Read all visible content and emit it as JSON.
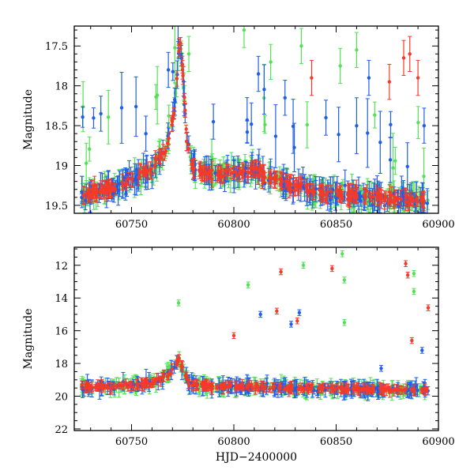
{
  "chart_data": [
    {
      "type": "scatter",
      "panel": "top",
      "title": "",
      "xlabel": "",
      "ylabel": "Magnitude",
      "xlim": [
        60722,
        60900
      ],
      "ylim": [
        19.6,
        17.25
      ],
      "y_inverted": true,
      "grid": false,
      "legend": "none",
      "x_ticks": [
        60750,
        60800,
        60850,
        60900
      ],
      "x_tick_labels": [
        "60750",
        "60800",
        "60850",
        "60900"
      ],
      "y_ticks": [
        17.5,
        18,
        18.5,
        19,
        19.5
      ],
      "y_tick_labels": [
        "17.5",
        "18",
        "18.5",
        "19",
        "19.5"
      ],
      "error_bars": true,
      "series": [
        {
          "color": "#55e055",
          "marker": "circle"
        },
        {
          "color": "#1f5ee8",
          "marker": "circle"
        },
        {
          "color": "#f53a2a",
          "marker": "circle"
        }
      ],
      "baseline": {
        "description": "quiescent level ~19.3 mag rising to outburst peak",
        "points": [
          [
            60725,
            19.38
          ],
          [
            60740,
            19.28
          ],
          [
            60750,
            19.18
          ],
          [
            60760,
            19.05
          ],
          [
            60767,
            18.78
          ],
          [
            60770,
            18.45
          ],
          [
            60772,
            18.05
          ],
          [
            60773,
            17.55
          ],
          [
            60774,
            17.45
          ],
          [
            60775,
            17.8
          ],
          [
            60777,
            18.7
          ],
          [
            60780,
            19.02
          ],
          [
            60790,
            19.12
          ],
          [
            60800,
            19.1
          ],
          [
            60810,
            19.05
          ],
          [
            60820,
            19.18
          ],
          [
            60840,
            19.32
          ],
          [
            60860,
            19.38
          ],
          [
            60880,
            19.42
          ],
          [
            60895,
            19.45
          ]
        ]
      },
      "outliers": [
        {
          "x": 60735,
          "y": 18.35,
          "color": "#1f5ee8"
        },
        {
          "x": 60757,
          "y": 18.6,
          "color": "#1f5ee8"
        },
        {
          "x": 60768,
          "y": 17.8,
          "color": "#1f5ee8"
        },
        {
          "x": 60778,
          "y": 17.6,
          "color": "#55e055"
        },
        {
          "x": 60790,
          "y": 18.45,
          "color": "#1f5ee8"
        },
        {
          "x": 60805,
          "y": 17.3,
          "color": "#55e055"
        },
        {
          "x": 60812,
          "y": 17.85,
          "color": "#1f5ee8"
        },
        {
          "x": 60818,
          "y": 17.7,
          "color": "#55e055"
        },
        {
          "x": 60825,
          "y": 18.15,
          "color": "#1f5ee8"
        },
        {
          "x": 60833,
          "y": 17.5,
          "color": "#55e055"
        },
        {
          "x": 60838,
          "y": 17.9,
          "color": "#f53a2a"
        },
        {
          "x": 60845,
          "y": 18.4,
          "color": "#1f5ee8"
        },
        {
          "x": 60852,
          "y": 17.75,
          "color": "#55e055"
        },
        {
          "x": 60860,
          "y": 17.55,
          "color": "#55e055"
        },
        {
          "x": 60866,
          "y": 17.9,
          "color": "#1f5ee8"
        },
        {
          "x": 60876,
          "y": 17.95,
          "color": "#f53a2a"
        },
        {
          "x": 60883,
          "y": 17.65,
          "color": "#f53a2a"
        },
        {
          "x": 60886,
          "y": 17.6,
          "color": "#f53a2a"
        },
        {
          "x": 60890,
          "y": 17.9,
          "color": "#f53a2a"
        },
        {
          "x": 60893,
          "y": 18.5,
          "color": "#1f5ee8"
        }
      ]
    },
    {
      "type": "scatter",
      "panel": "bottom",
      "title": "",
      "xlabel": "HJD−2400000",
      "ylabel": "Magnitude",
      "xlim": [
        60722,
        60900
      ],
      "ylim": [
        22.1,
        10.9
      ],
      "y_inverted": true,
      "grid": false,
      "legend": "none",
      "x_ticks": [
        60750,
        60800,
        60850,
        60900
      ],
      "x_tick_labels": [
        "60750",
        "60800",
        "60850",
        "60900"
      ],
      "y_ticks": [
        12,
        14,
        16,
        18,
        20,
        22
      ],
      "y_tick_labels": [
        "12",
        "14",
        "16",
        "18",
        "20",
        "22"
      ],
      "error_bars": true,
      "series": [
        {
          "color": "#55e055",
          "marker": "circle"
        },
        {
          "color": "#1f5ee8",
          "marker": "circle"
        },
        {
          "color": "#f53a2a",
          "marker": "circle"
        }
      ],
      "baseline": {
        "description": "quiescent level ~19.4 mag with outburst peak near 17.6",
        "points": [
          [
            60725,
            19.45
          ],
          [
            60740,
            19.4
          ],
          [
            60755,
            19.3
          ],
          [
            60765,
            19.0
          ],
          [
            60770,
            18.4
          ],
          [
            60773,
            17.7
          ],
          [
            60775,
            18.3
          ],
          [
            60778,
            19.2
          ],
          [
            60790,
            19.45
          ],
          [
            60810,
            19.4
          ],
          [
            60830,
            19.5
          ],
          [
            60850,
            19.55
          ],
          [
            60870,
            19.6
          ],
          [
            60885,
            19.6
          ],
          [
            60895,
            19.55
          ]
        ]
      },
      "outliers": [
        {
          "x": 60773,
          "y": 14.3,
          "color": "#55e055"
        },
        {
          "x": 60807,
          "y": 13.2,
          "color": "#55e055"
        },
        {
          "x": 60800,
          "y": 16.3,
          "color": "#f53a2a"
        },
        {
          "x": 60813,
          "y": 15.0,
          "color": "#1f5ee8"
        },
        {
          "x": 60821,
          "y": 14.8,
          "color": "#f53a2a"
        },
        {
          "x": 60823,
          "y": 12.4,
          "color": "#f53a2a"
        },
        {
          "x": 60828,
          "y": 15.6,
          "color": "#1f5ee8"
        },
        {
          "x": 60831,
          "y": 15.4,
          "color": "#f53a2a"
        },
        {
          "x": 60832,
          "y": 14.9,
          "color": "#1f5ee8"
        },
        {
          "x": 60834,
          "y": 12.0,
          "color": "#55e055"
        },
        {
          "x": 60848,
          "y": 12.2,
          "color": "#f53a2a"
        },
        {
          "x": 60853,
          "y": 11.3,
          "color": "#55e055"
        },
        {
          "x": 60854,
          "y": 12.9,
          "color": "#55e055"
        },
        {
          "x": 60854,
          "y": 15.5,
          "color": "#55e055"
        },
        {
          "x": 60872,
          "y": 18.3,
          "color": "#1f5ee8"
        },
        {
          "x": 60884,
          "y": 11.9,
          "color": "#f53a2a"
        },
        {
          "x": 60885,
          "y": 12.6,
          "color": "#f53a2a"
        },
        {
          "x": 60888,
          "y": 12.5,
          "color": "#55e055"
        },
        {
          "x": 60888,
          "y": 13.6,
          "color": "#55e055"
        },
        {
          "x": 60887,
          "y": 16.6,
          "color": "#f53a2a"
        },
        {
          "x": 60895,
          "y": 14.6,
          "color": "#f53a2a"
        },
        {
          "x": 60892,
          "y": 17.2,
          "color": "#1f5ee8"
        }
      ]
    }
  ]
}
